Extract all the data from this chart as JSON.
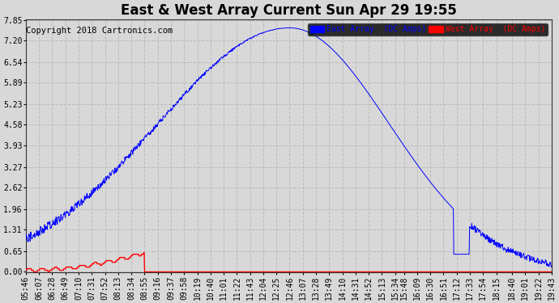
{
  "title": "East & West Array Current Sun Apr 29 19:55",
  "copyright": "Copyright 2018 Cartronics.com",
  "legend_east": "East Array  (DC Amps)",
  "legend_west": "West Array  (DC Amps)",
  "east_color": "#0000FF",
  "west_color": "#FF0000",
  "background_color": "#D8D8D8",
  "grid_color": "#BBBBBB",
  "yticks": [
    0.0,
    0.65,
    1.31,
    1.96,
    2.62,
    3.27,
    3.93,
    4.58,
    5.23,
    5.89,
    6.54,
    7.2,
    7.85
  ],
  "ymax": 7.85,
  "xtick_labels": [
    "05:46",
    "06:07",
    "06:28",
    "06:49",
    "07:10",
    "07:31",
    "07:52",
    "08:13",
    "08:34",
    "08:55",
    "09:16",
    "09:37",
    "09:58",
    "10:19",
    "10:40",
    "11:01",
    "11:22",
    "11:43",
    "12:04",
    "12:25",
    "12:46",
    "13:07",
    "13:28",
    "13:49",
    "14:10",
    "14:31",
    "14:52",
    "15:13",
    "15:34",
    "15:48",
    "16:09",
    "16:30",
    "16:51",
    "17:12",
    "17:33",
    "17:54",
    "18:15",
    "18:40",
    "19:01",
    "19:22",
    "19:43"
  ],
  "title_fontsize": 12,
  "tick_fontsize": 7,
  "copyright_fontsize": 7.5
}
